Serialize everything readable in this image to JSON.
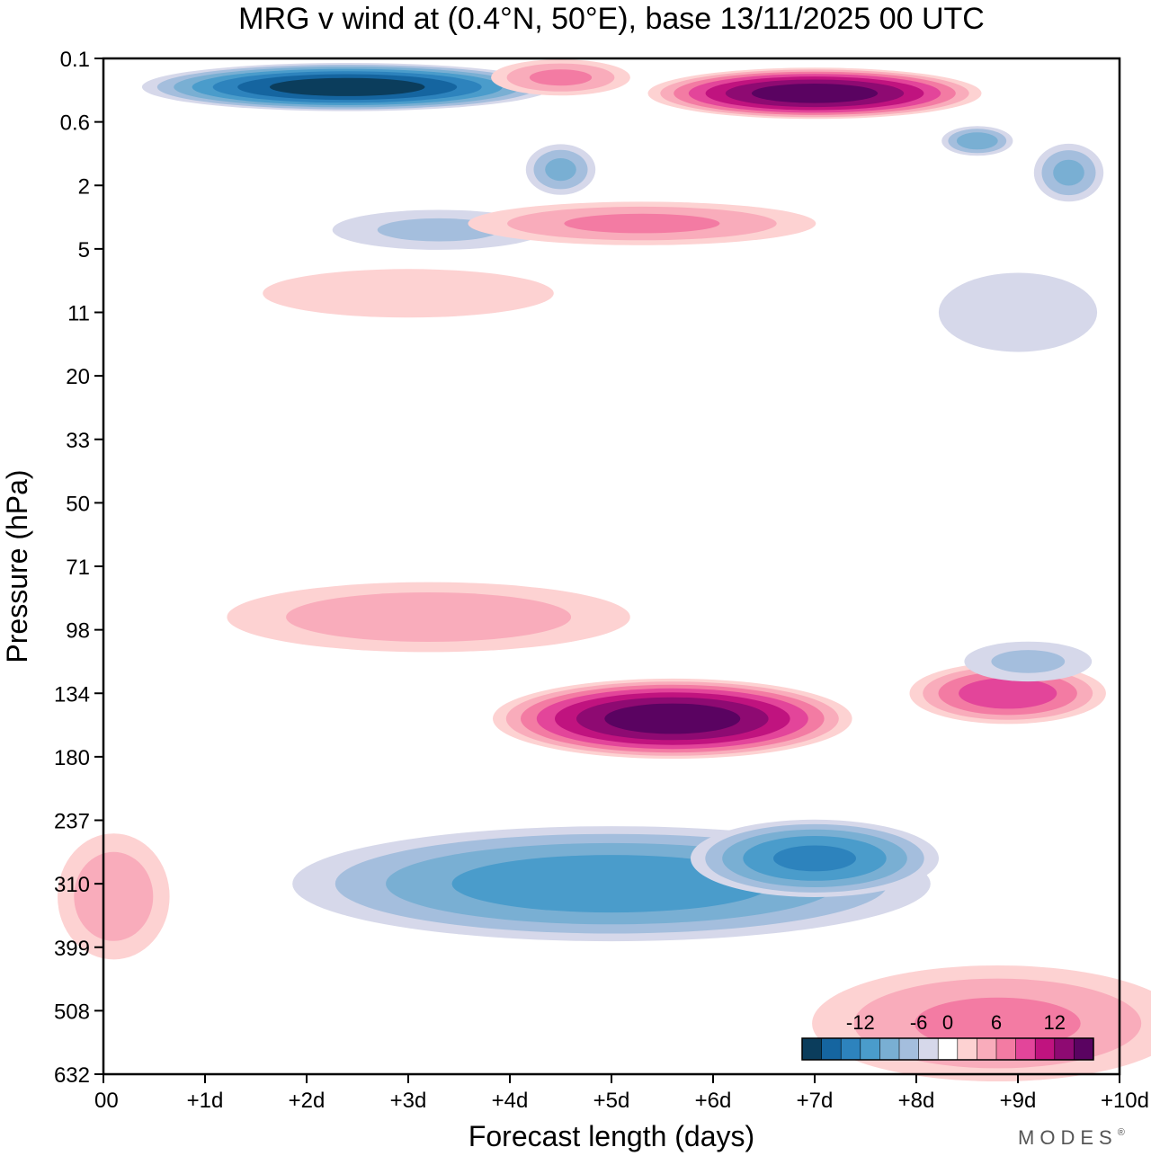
{
  "chart_data": {
    "type": "heatmap",
    "title": "MRG v wind at (0.4°N, 50°E),  base 13/11/2025  00 UTC",
    "xlabel": "Forecast length (days)",
    "ylabel": "Pressure (hPa)",
    "x_ticks": [
      "00",
      "+1d",
      "+2d",
      "+3d",
      "+4d",
      "+5d",
      "+6d",
      "+7d",
      "+8d",
      "+9d",
      "+10d"
    ],
    "y_ticks": [
      "0.1",
      "0.6",
      "2",
      "5",
      "11",
      "20",
      "33",
      "50",
      "71",
      "98",
      "134",
      "180",
      "237",
      "310",
      "399",
      "508",
      "632"
    ],
    "xlim": [
      0,
      10
    ],
    "y_axis": "level index (0 = 0.1 hPa top, 16 = 632 hPa bottom)",
    "colorbar": {
      "tick_labels": [
        "-12",
        "-6",
        "0",
        "6",
        "12"
      ],
      "levels": [
        -16,
        -14,
        -12,
        -10,
        -8,
        -6,
        -4,
        -2,
        2,
        4,
        6,
        8,
        10,
        12,
        14,
        16
      ],
      "colors": [
        "#0b3d5c",
        "#1565a0",
        "#2d83bd",
        "#4a9ccb",
        "#79afd3",
        "#a4bedd",
        "#d6d8ea",
        "#ffffff",
        "#fdd2d2",
        "#f9acbb",
        "#f37ba3",
        "#e3459a",
        "#c0137f",
        "#8e0a72",
        "#5a0361"
      ]
    },
    "features": [
      {
        "sign": "neg",
        "peak": -16,
        "day": 2.4,
        "level": 0.45,
        "sx": 1.6,
        "sy": 0.3
      },
      {
        "sign": "neg",
        "peak": -7,
        "day": 4.5,
        "level": 1.75,
        "sx": 0.3,
        "sy": 0.35
      },
      {
        "sign": "neg",
        "peak": -5,
        "day": 3.3,
        "level": 2.7,
        "sx": 1.0,
        "sy": 0.3
      },
      {
        "sign": "neg",
        "peak": -8,
        "day": 8.6,
        "level": 1.3,
        "sx": 0.3,
        "sy": 0.2
      },
      {
        "sign": "neg",
        "peak": -7,
        "day": 9.5,
        "level": 1.8,
        "sx": 0.3,
        "sy": 0.4
      },
      {
        "sign": "pos",
        "peak": 16,
        "day": 7.0,
        "level": 0.55,
        "sx": 1.3,
        "sy": 0.32
      },
      {
        "sign": "pos",
        "peak": 7,
        "day": 4.5,
        "level": 0.3,
        "sx": 0.6,
        "sy": 0.25
      },
      {
        "sign": "pos",
        "peak": 7,
        "day": 5.3,
        "level": 2.6,
        "sx": 1.5,
        "sy": 0.3
      },
      {
        "sign": "pos",
        "peak": 16,
        "day": 5.6,
        "level": 10.4,
        "sx": 1.4,
        "sy": 0.5
      },
      {
        "sign": "pos",
        "peak": 10,
        "day": 8.9,
        "level": 10.0,
        "sx": 0.8,
        "sy": 0.4
      },
      {
        "sign": "pos",
        "peak": 6,
        "day": 3.2,
        "level": 8.8,
        "sx": 1.8,
        "sy": 0.5
      },
      {
        "sign": "pos",
        "peak": 6,
        "day": 0.1,
        "level": 13.2,
        "sx": 0.5,
        "sy": 0.9
      },
      {
        "sign": "pos",
        "peak": 7,
        "day": 8.8,
        "level": 15.2,
        "sx": 1.6,
        "sy": 0.8
      },
      {
        "sign": "neg",
        "peak": -10,
        "day": 5.0,
        "level": 13.0,
        "sx": 2.6,
        "sy": 0.75
      },
      {
        "sign": "neg",
        "peak": -11,
        "day": 7.0,
        "level": 12.6,
        "sx": 1.0,
        "sy": 0.5
      },
      {
        "sign": "neg",
        "peak": -5,
        "day": 9.1,
        "level": 9.5,
        "sx": 0.6,
        "sy": 0.3
      },
      {
        "sign": "pos",
        "peak": 4,
        "day": 3.0,
        "level": 3.7,
        "sx": 1.5,
        "sy": 0.4
      },
      {
        "sign": "neg",
        "peak": -3,
        "day": 9.0,
        "level": 4.0,
        "sx": 1.0,
        "sy": 0.8
      }
    ]
  },
  "branding": {
    "logo_text": "MODES",
    "registered_mark": "®"
  }
}
